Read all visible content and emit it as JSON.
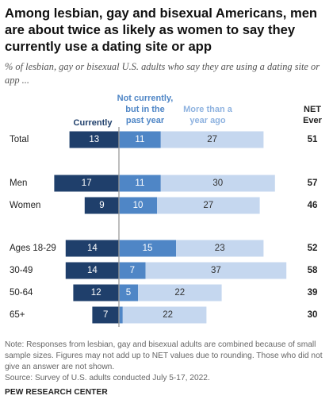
{
  "title": "Among lesbian, gay and bisexual Americans, men are about twice as likely as women to say they currently use a dating site or app",
  "subtitle": "% of lesbian, gay or bisexual U.S. adults who say they are using a dating site or app ...",
  "chart_data": {
    "type": "bar",
    "orientation": "horizontal",
    "stacked": true,
    "diverging": true,
    "categories": [
      "Total",
      "Men",
      "Women",
      "Ages 18-29",
      "30-49",
      "50-64",
      "65+"
    ],
    "series": [
      {
        "name": "Currently",
        "values": [
          13,
          17,
          9,
          14,
          14,
          12,
          7
        ],
        "color": "#1f3f6b"
      },
      {
        "name": "Not currently, but in the past year",
        "values": [
          11,
          11,
          10,
          15,
          7,
          5,
          1
        ],
        "color": "#4f86c6"
      },
      {
        "name": "More than a year ago",
        "values": [
          27,
          30,
          27,
          23,
          37,
          22,
          22
        ],
        "color": "#c5d7ef"
      }
    ],
    "net": {
      "label": "NET Ever",
      "values": [
        51,
        57,
        46,
        52,
        58,
        39,
        30
      ]
    }
  },
  "notes": "Note: Responses from lesbian, gay and bisexual adults are combined because of small sample sizes. Figures may not add up to NET values due to rounding. Those who did not give an answer are not shown.",
  "source": "Source: Survey of U.S. adults conducted July 5-17, 2022.",
  "brand": "PEW RESEARCH CENTER"
}
